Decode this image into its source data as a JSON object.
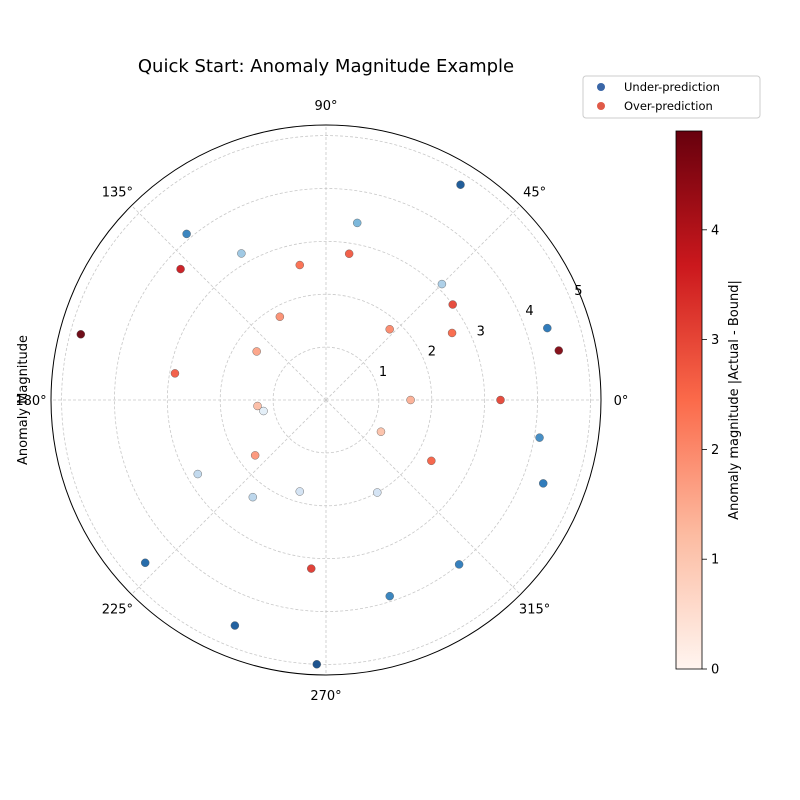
{
  "chart_data": {
    "type": "scatter",
    "projection": "polar",
    "title": "Quick Start: Anomaly Magnitude Example",
    "ylabel": "Anomaly Magnitude",
    "colorbar_label": "Anomaly magnitude |Actual - Bound|",
    "angle_unit": "degrees",
    "rlim": [
      0,
      5.2
    ],
    "radial_ticks": [
      1,
      2,
      3,
      4,
      5
    ],
    "angular_ticks": [
      "0°",
      "45°",
      "90°",
      "135°",
      "180°",
      "225°",
      "270°",
      "315°"
    ],
    "colorbar_ticks": [
      0,
      1,
      2,
      3,
      4
    ],
    "colorbar_range": [
      0,
      4.9
    ],
    "grid": true,
    "legend_position": "top-right",
    "colors": {
      "under_map": [
        "#f7fbff",
        "#c6dbef",
        "#6baed6",
        "#2171b5",
        "#08306b"
      ],
      "over_map": [
        "#fff5f0",
        "#fcbba1",
        "#fb6a4a",
        "#cb181d",
        "#67000d"
      ],
      "legend_under": "#3a66a7",
      "legend_over": "#e05a48"
    },
    "series": [
      {
        "name": "Under-prediction",
        "points": [
          {
            "theta": 18,
            "r": 4.4,
            "mag": 3.6
          },
          {
            "theta": 45,
            "r": 3.1,
            "mag": 1.6
          },
          {
            "theta": 58,
            "r": 4.8,
            "mag": 4.2
          },
          {
            "theta": 120,
            "r": 3.2,
            "mag": 1.8
          },
          {
            "theta": 130,
            "r": 4.1,
            "mag": 3.4
          },
          {
            "theta": 190,
            "r": 1.2,
            "mag": 0.5
          },
          {
            "theta": 210,
            "r": 2.8,
            "mag": 1.3
          },
          {
            "theta": 233,
            "r": 2.3,
            "mag": 1.4
          },
          {
            "theta": 222,
            "r": 4.6,
            "mag": 3.9
          },
          {
            "theta": 248,
            "r": 4.6,
            "mag": 4.1
          },
          {
            "theta": 268,
            "r": 5.0,
            "mag": 4.4
          },
          {
            "theta": 254,
            "r": 1.8,
            "mag": 0.9
          },
          {
            "theta": 299,
            "r": 2.0,
            "mag": 0.9
          },
          {
            "theta": 288,
            "r": 3.9,
            "mag": 3.4
          },
          {
            "theta": 309,
            "r": 4.0,
            "mag": 3.5
          },
          {
            "theta": 339,
            "r": 4.4,
            "mag": 3.6
          },
          {
            "theta": 350,
            "r": 4.1,
            "mag": 3.2
          },
          {
            "theta": 80,
            "r": 3.4,
            "mag": 2.3
          }
        ]
      },
      {
        "name": "Over-prediction",
        "points": [
          {
            "theta": 0,
            "r": 1.6,
            "mag": 1.4
          },
          {
            "theta": 0,
            "r": 3.3,
            "mag": 3.0
          },
          {
            "theta": 12,
            "r": 4.5,
            "mag": 4.6
          },
          {
            "theta": 28,
            "r": 2.7,
            "mag": 2.5
          },
          {
            "theta": 37,
            "r": 3.0,
            "mag": 3.0
          },
          {
            "theta": 48,
            "r": 1.8,
            "mag": 2.0
          },
          {
            "theta": 81,
            "r": 2.8,
            "mag": 2.7
          },
          {
            "theta": 101,
            "r": 2.6,
            "mag": 2.4
          },
          {
            "theta": 119,
            "r": 1.8,
            "mag": 1.9
          },
          {
            "theta": 145,
            "r": 1.6,
            "mag": 1.6
          },
          {
            "theta": 138,
            "r": 3.7,
            "mag": 3.7
          },
          {
            "theta": 165,
            "r": 4.8,
            "mag": 4.9
          },
          {
            "theta": 170,
            "r": 2.9,
            "mag": 2.7
          },
          {
            "theta": 185,
            "r": 1.3,
            "mag": 1.2
          },
          {
            "theta": 218,
            "r": 1.7,
            "mag": 1.8
          },
          {
            "theta": 265,
            "r": 3.2,
            "mag": 3.2
          },
          {
            "theta": 330,
            "r": 2.3,
            "mag": 2.6
          },
          {
            "theta": 330,
            "r": 1.2,
            "mag": 1.1
          }
        ]
      }
    ]
  }
}
